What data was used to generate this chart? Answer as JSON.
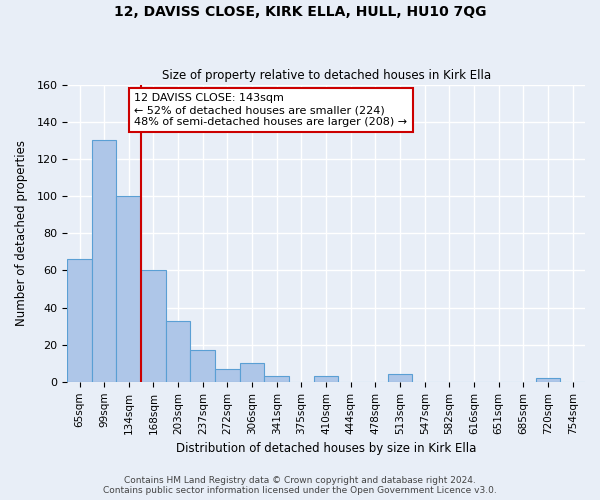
{
  "title": "12, DAVISS CLOSE, KIRK ELLA, HULL, HU10 7QG",
  "subtitle": "Size of property relative to detached houses in Kirk Ella",
  "xlabel": "Distribution of detached houses by size in Kirk Ella",
  "ylabel": "Number of detached properties",
  "footer_line1": "Contains HM Land Registry data © Crown copyright and database right 2024.",
  "footer_line2": "Contains public sector information licensed under the Open Government Licence v3.0.",
  "bar_labels": [
    "65sqm",
    "99sqm",
    "134sqm",
    "168sqm",
    "203sqm",
    "237sqm",
    "272sqm",
    "306sqm",
    "341sqm",
    "375sqm",
    "410sqm",
    "444sqm",
    "478sqm",
    "513sqm",
    "547sqm",
    "582sqm",
    "616sqm",
    "651sqm",
    "685sqm",
    "720sqm",
    "754sqm"
  ],
  "bar_values": [
    66,
    130,
    100,
    60,
    33,
    17,
    7,
    10,
    3,
    0,
    3,
    0,
    0,
    4,
    0,
    0,
    0,
    0,
    0,
    2,
    0
  ],
  "bar_color": "#aec6e8",
  "bar_edge_color": "#5a9fd4",
  "background_color": "#e8eef7",
  "grid_color": "#ffffff",
  "annotation_box_color": "#ffffff",
  "annotation_border_color": "#cc0000",
  "annotation_line1": "12 DAVISS CLOSE: 143sqm",
  "annotation_line2": "← 52% of detached houses are smaller (224)",
  "annotation_line3": "48% of semi-detached houses are larger (208) →",
  "red_line_x": 2.5,
  "ylim": [
    0,
    160
  ],
  "yticks": [
    0,
    20,
    40,
    60,
    80,
    100,
    120,
    140,
    160
  ]
}
